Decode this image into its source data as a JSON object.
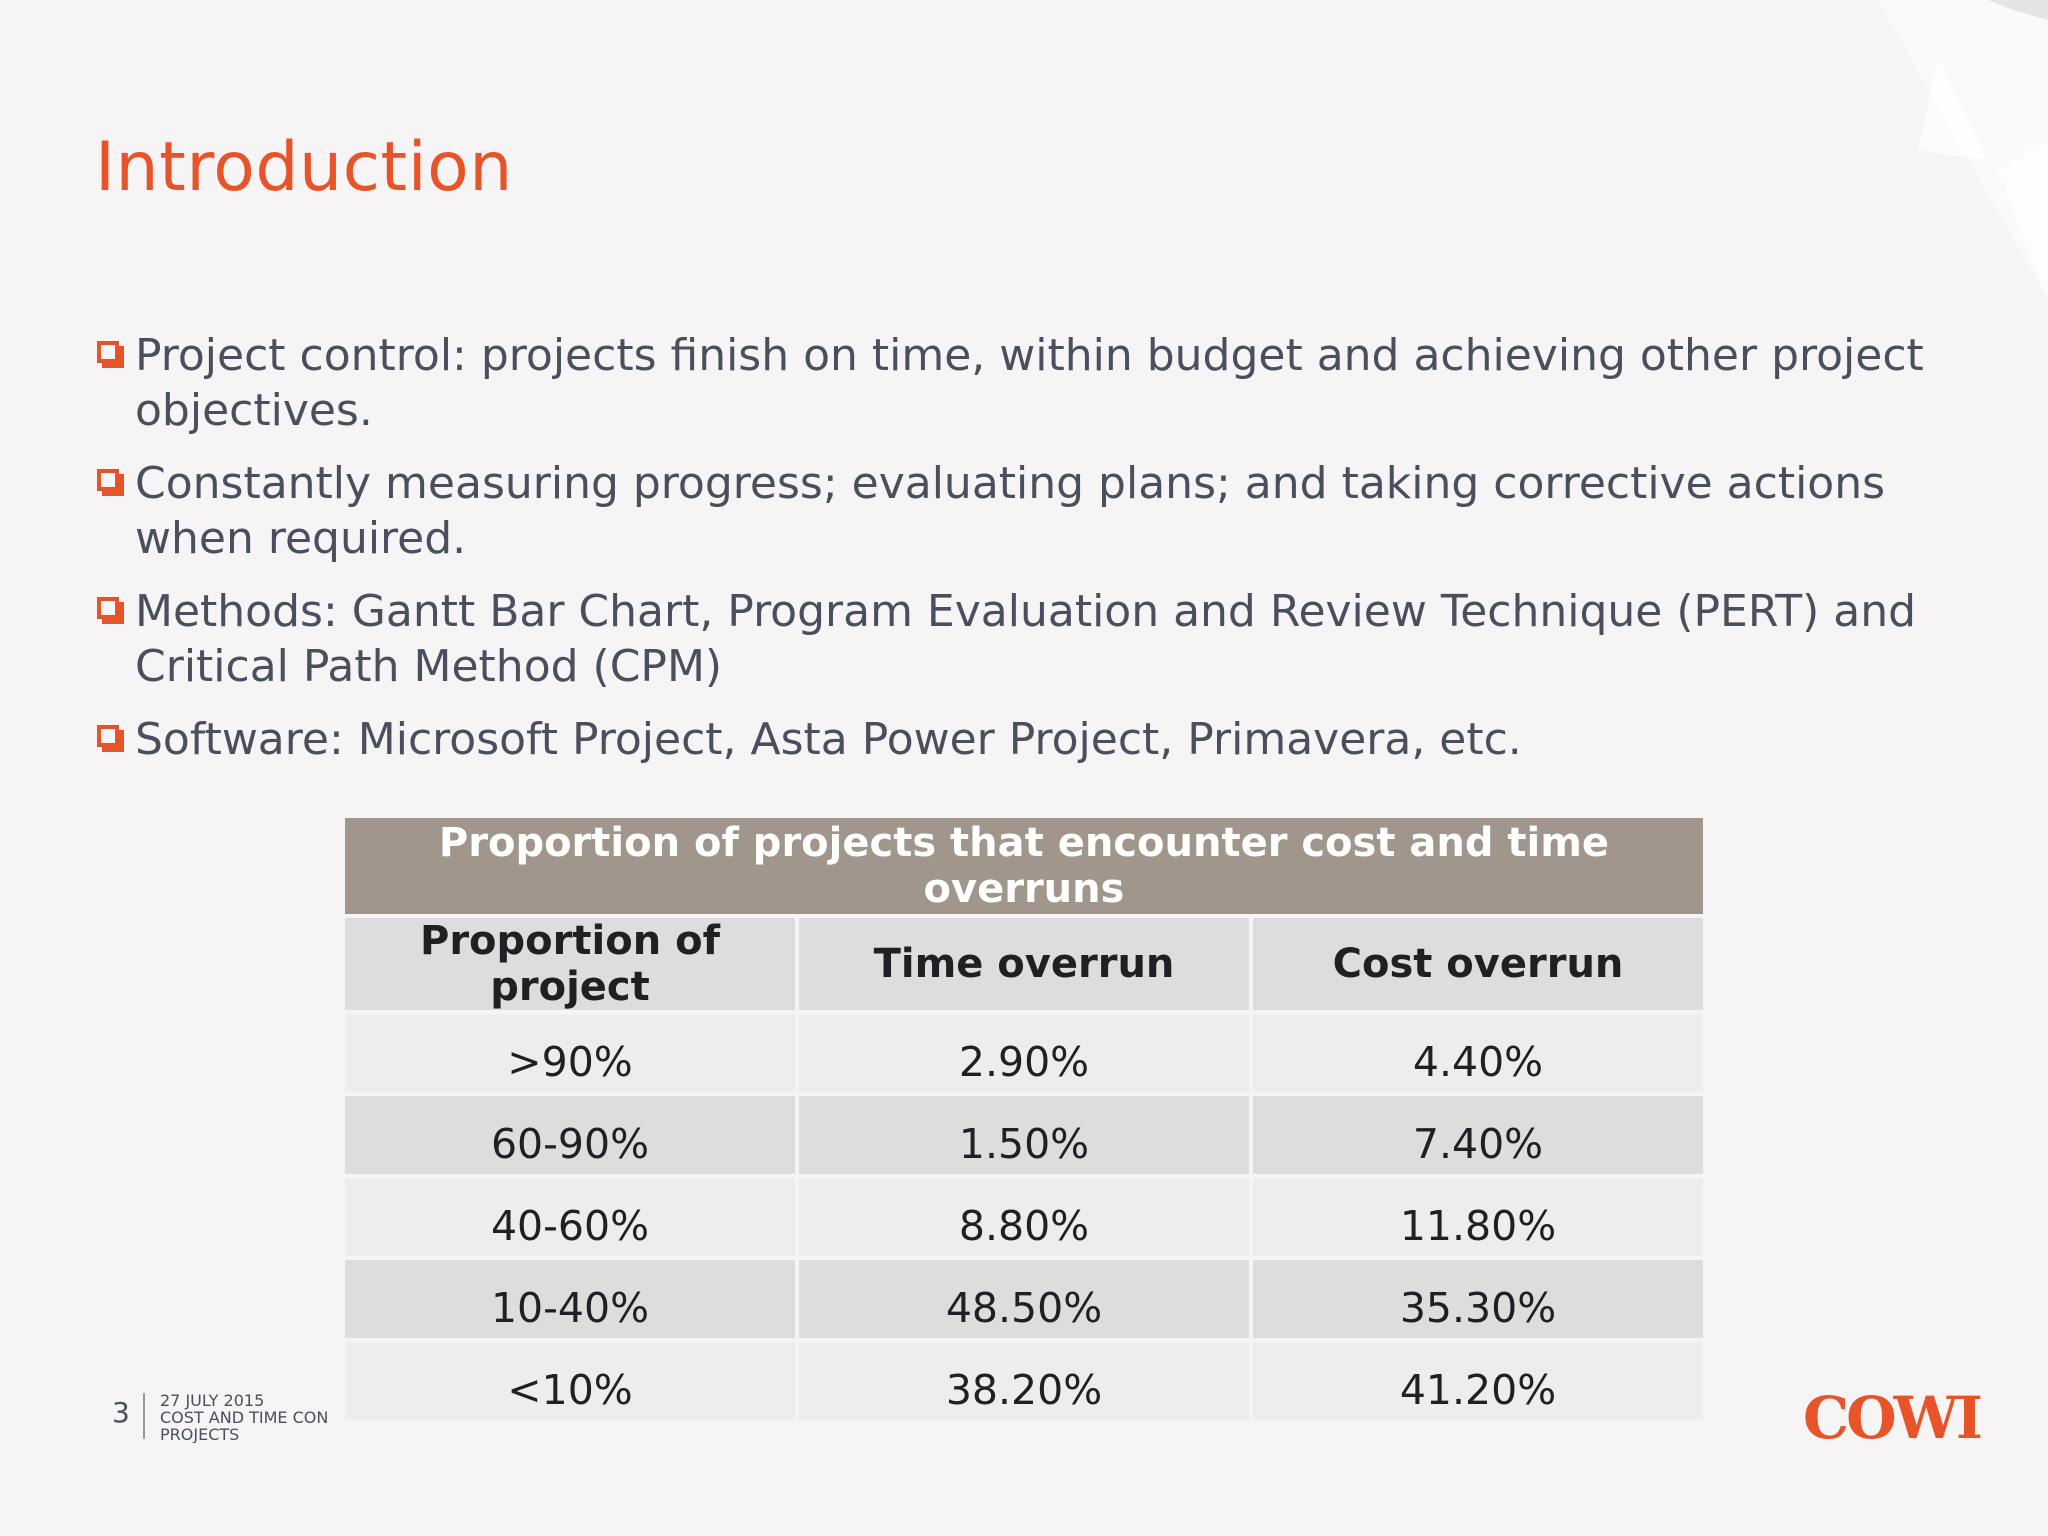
{
  "slide": {
    "title": "Introduction",
    "bullets": [
      {
        "text": "Project control: projects finish on time, within budget and achieving other project objectives."
      },
      {
        "text": "Constantly measuring progress; evaluating plans; and taking corrective actions when required."
      },
      {
        "text": "Methods: Gantt Bar Chart, Program Evaluation and Review Technique (PERT) and Critical Path Method (CPM)"
      },
      {
        "text": "Software: Microsoft Project, Asta Power Project, Primavera, etc."
      }
    ],
    "bullet_icon": "checkbox-square-icon",
    "accent_color": "#e8542a"
  },
  "table": {
    "caption": "Proportion of projects that encounter cost and time overruns",
    "columns": [
      "Proportion of project",
      "Time overrun",
      "Cost overrun"
    ],
    "rows": [
      [
        ">90%",
        "2.90%",
        "4.40%"
      ],
      [
        "60-90%",
        "1.50%",
        "7.40%"
      ],
      [
        "40-60%",
        "8.80%",
        "11.80%"
      ],
      [
        "10-40%",
        "48.50%",
        "35.30%"
      ],
      [
        "<10%",
        "38.20%",
        "41.20%"
      ]
    ],
    "caption_color": "#a0968b"
  },
  "footer": {
    "page_number": "3",
    "date": "27 JULY 2015",
    "subtitle_line1": "COST AND TIME CON",
    "subtitle_line2": "PROJECTS",
    "logo": "COWI"
  }
}
